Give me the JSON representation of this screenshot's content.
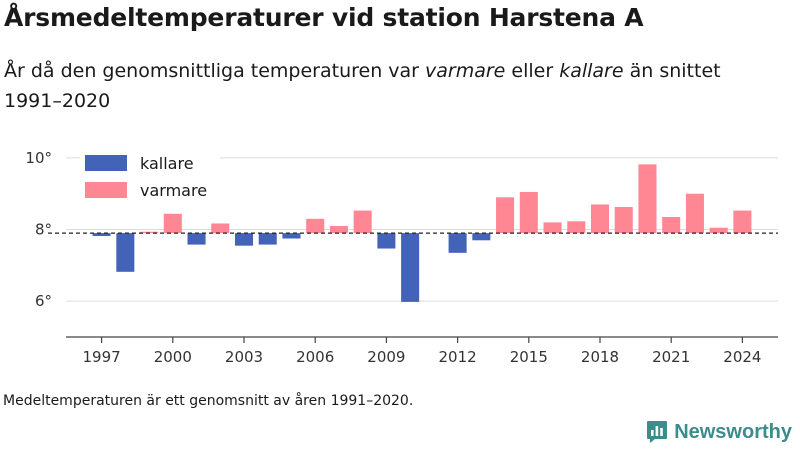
{
  "title": "Årsmedeltemperaturer vid station Harstena A",
  "subtitle": {
    "part1": "År då den genomsnittliga temperaturen var ",
    "warm_word": "varmare",
    "part2": " eller ",
    "cold_word": "kallare",
    "part3": " än snittet 1991–2020"
  },
  "footnote": "Medeltemperaturen är ett genomsnitt av åren 1991–2020.",
  "brand": {
    "name": "Newsworthy",
    "color": "#3d8c8c",
    "icon": "newsworthy-logo-icon"
  },
  "chart_data": {
    "type": "bar",
    "baseline": 7.9,
    "baseline_style": "dashed",
    "ylim": [
      5,
      10.5
    ],
    "yticks": [
      6,
      8,
      10
    ],
    "ytick_labels": [
      "6°",
      "8°",
      "10°"
    ],
    "xlim": [
      1995.5,
      2025.5
    ],
    "xticks": [
      1997,
      2000,
      2003,
      2006,
      2009,
      2012,
      2015,
      2018,
      2021,
      2024
    ],
    "grid": "horizontal",
    "legend_position": "top-left",
    "colors": {
      "kallare": "#4363b8",
      "varmare": "#ff8793"
    },
    "legend": [
      "kallare",
      "varmare"
    ],
    "x": [
      1997,
      1998,
      1999,
      2000,
      2001,
      2002,
      2003,
      2004,
      2005,
      2006,
      2007,
      2008,
      2009,
      2010,
      2012,
      2013,
      2014,
      2015,
      2016,
      2017,
      2018,
      2019,
      2020,
      2021,
      2022,
      2023,
      2024
    ],
    "values": [
      7.82,
      6.82,
      7.94,
      8.44,
      7.58,
      8.17,
      7.55,
      7.58,
      7.75,
      8.3,
      8.1,
      8.53,
      7.47,
      5.98,
      7.35,
      7.7,
      8.9,
      9.05,
      8.2,
      8.23,
      8.7,
      8.63,
      9.82,
      8.35,
      9.0,
      8.05,
      8.53
    ]
  }
}
